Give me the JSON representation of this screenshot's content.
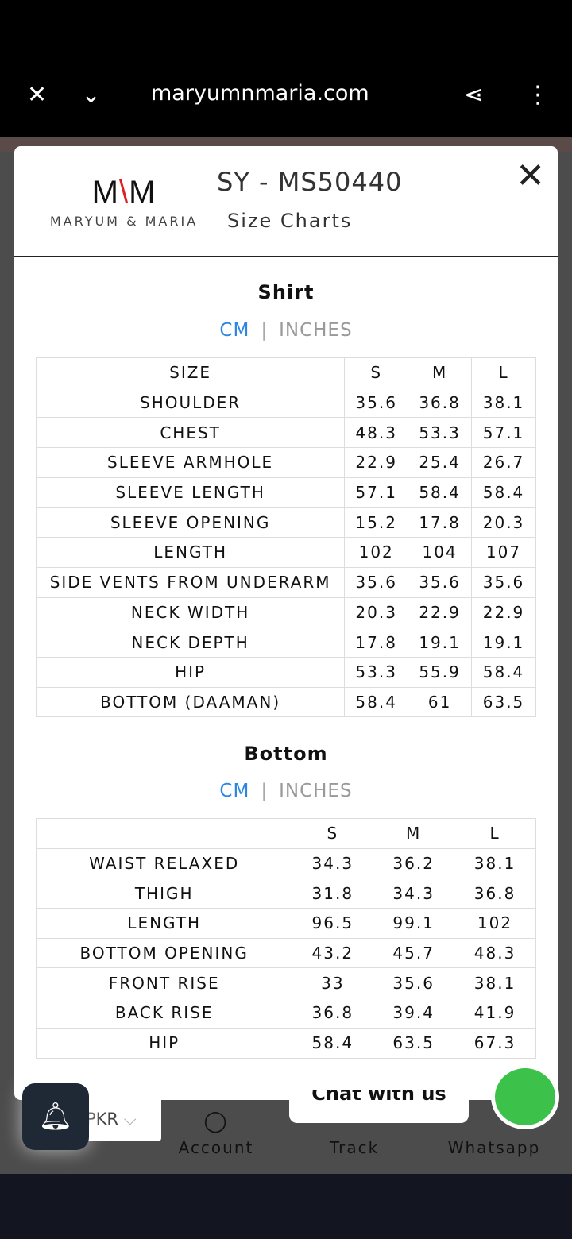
{
  "browser": {
    "url": "maryumnmaria.com",
    "close_icon": "close-icon",
    "chevron_icon": "chevron-down-icon",
    "share_icon": "share-icon",
    "menu_icon": "more-vert-icon"
  },
  "modal": {
    "logo": {
      "mark": "M\\M",
      "name": "MARYUM & MARIA"
    },
    "title": "SY - MS50440",
    "subtitle": "Size Charts",
    "shirt": {
      "title": "Shirt",
      "unit_cm": "CM",
      "unit_sep": "|",
      "unit_in": "INCHES",
      "headers": [
        "SIZE",
        "S",
        "M",
        "L"
      ],
      "rows": [
        [
          "SHOULDER",
          "35.6",
          "36.8",
          "38.1"
        ],
        [
          "CHEST",
          "48.3",
          "53.3",
          "57.1"
        ],
        [
          "SLEEVE ARMHOLE",
          "22.9",
          "25.4",
          "26.7"
        ],
        [
          "SLEEVE LENGTH",
          "57.1",
          "58.4",
          "58.4"
        ],
        [
          "SLEEVE OPENING",
          "15.2",
          "17.8",
          "20.3"
        ],
        [
          "LENGTH",
          "102",
          "104",
          "107"
        ],
        [
          "SIDE VENTS FROM UNDERARM",
          "35.6",
          "35.6",
          "35.6"
        ],
        [
          "NECK WIDTH",
          "20.3",
          "22.9",
          "22.9"
        ],
        [
          "NECK DEPTH",
          "17.8",
          "19.1",
          "19.1"
        ],
        [
          "HIP",
          "53.3",
          "55.9",
          "58.4"
        ],
        [
          "BOTTOM (DAAMAN)",
          "58.4",
          "61",
          "63.5"
        ]
      ]
    },
    "bottom": {
      "title": "Bottom",
      "unit_cm": "CM",
      "unit_sep": "|",
      "unit_in": "INCHES",
      "headers": [
        "",
        "S",
        "M",
        "L"
      ],
      "rows": [
        [
          "WAIST RELAXED",
          "34.3",
          "36.2",
          "38.1"
        ],
        [
          "THIGH",
          "31.8",
          "34.3",
          "36.8"
        ],
        [
          "LENGTH",
          "96.5",
          "99.1",
          "102"
        ],
        [
          "BOTTOM OPENING",
          "43.2",
          "45.7",
          "48.3"
        ],
        [
          "FRONT RISE",
          "33",
          "35.6",
          "38.1"
        ],
        [
          "BACK RISE",
          "36.8",
          "39.4",
          "41.9"
        ],
        [
          "HIP",
          "58.4",
          "63.5",
          "67.3"
        ]
      ]
    }
  },
  "currency": "PKR",
  "chat": "Chat with us",
  "nav": {
    "account": "Account",
    "track": "Track",
    "whatsapp": "Whatsapp"
  },
  "colors": {
    "accent": "#2b86e0",
    "logo_red": "#e02020",
    "whatsapp": "#3cc24a"
  }
}
